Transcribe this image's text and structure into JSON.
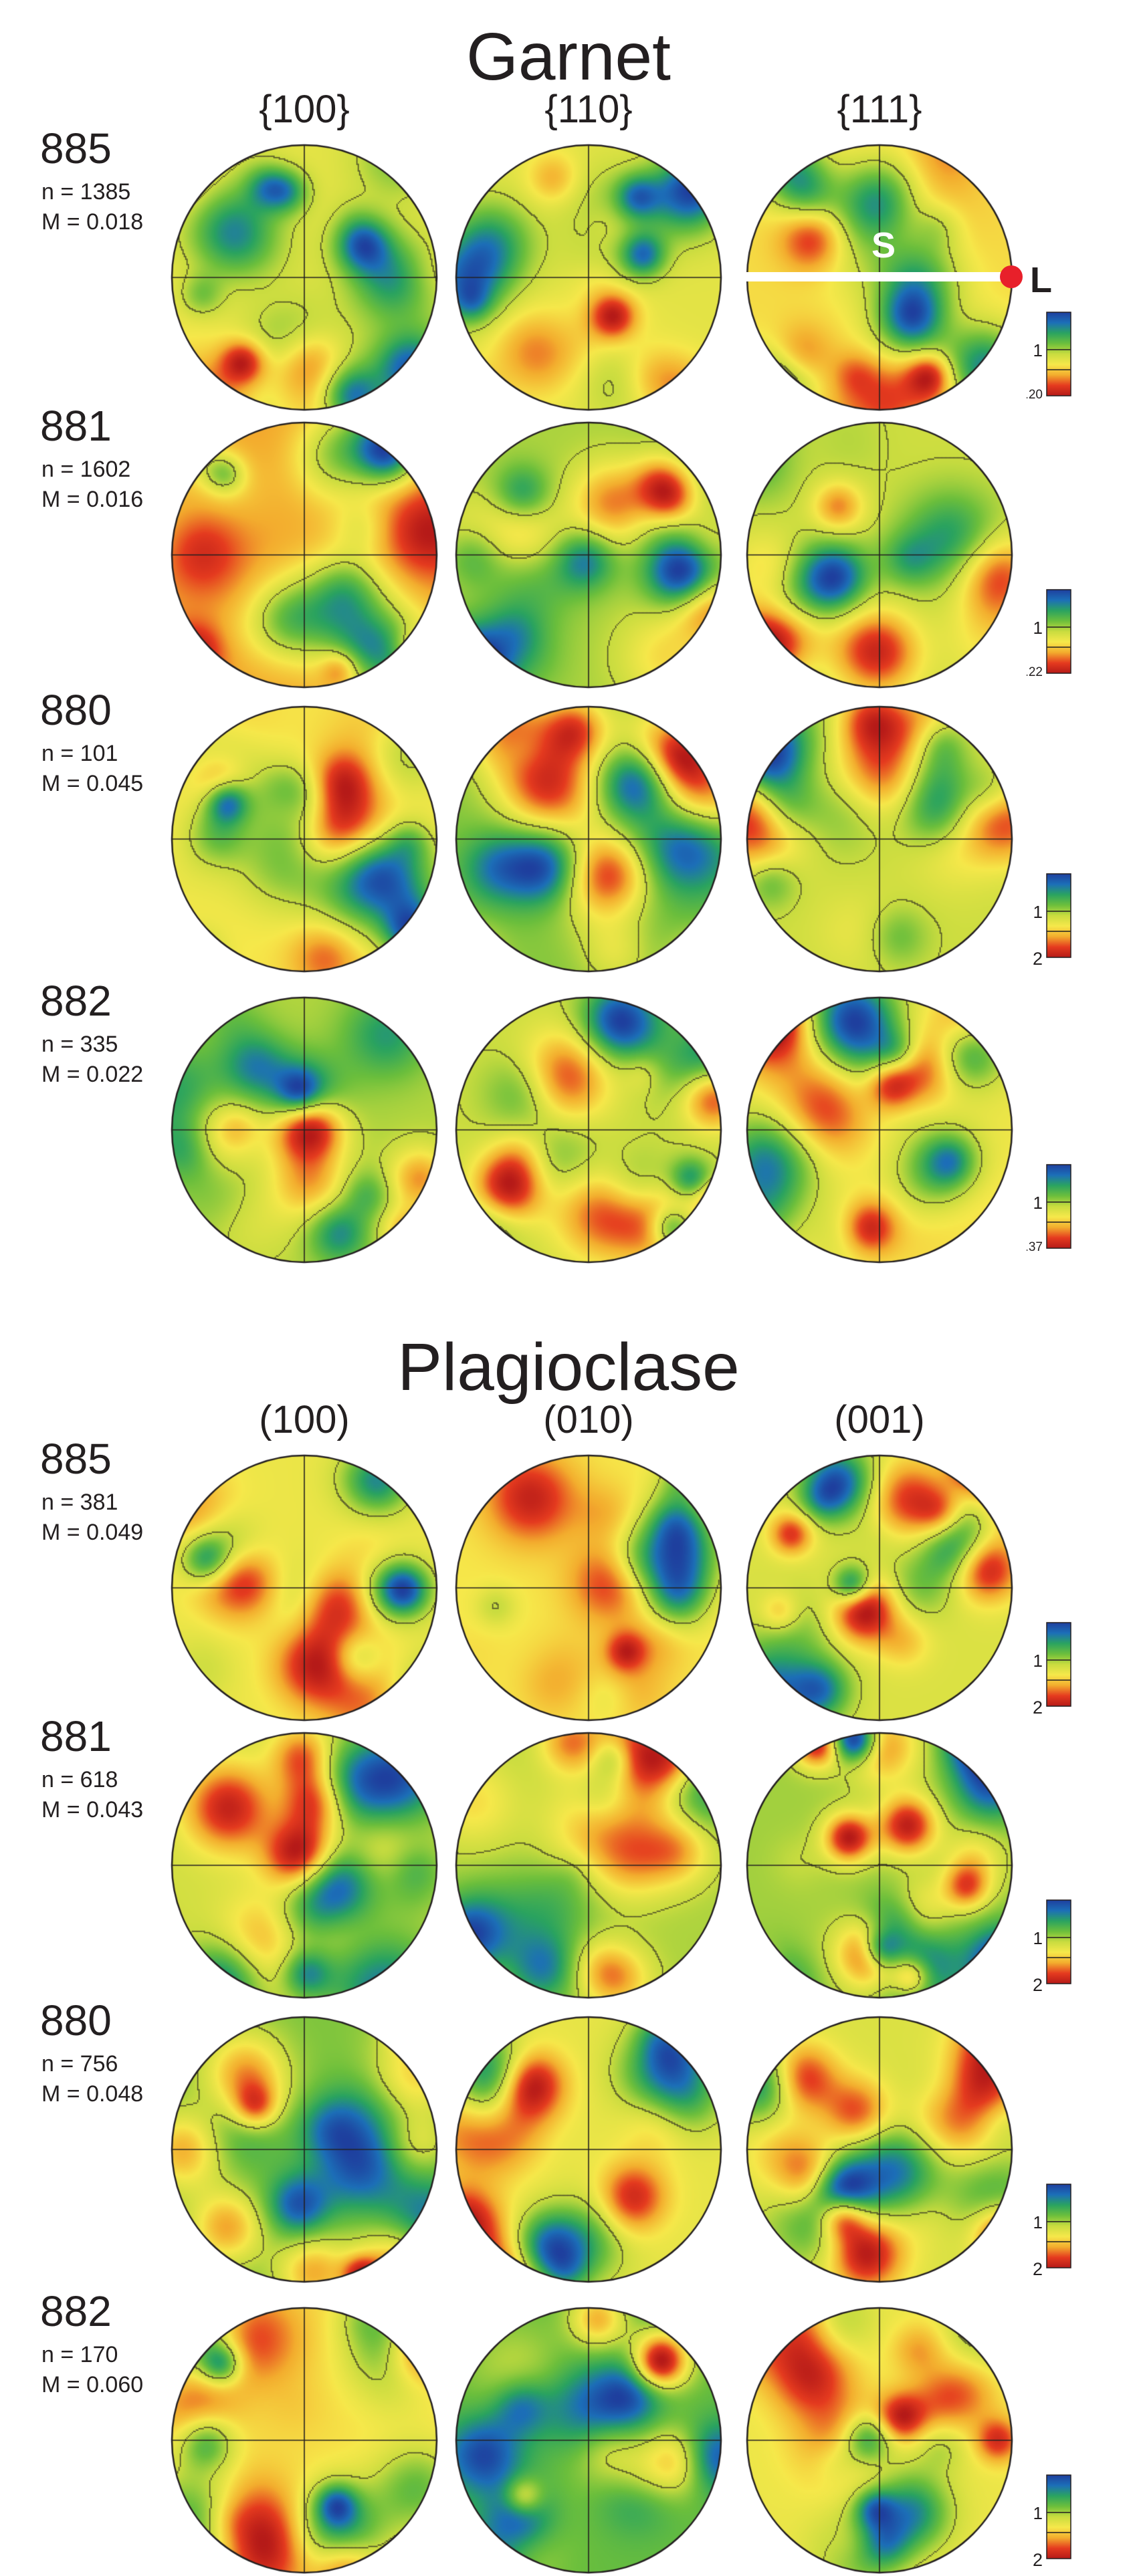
{
  "sections": [
    {
      "title": "Garnet",
      "columns": [
        "{100}",
        "{110}",
        "{111}"
      ],
      "scale_labels": [
        "1"
      ],
      "rows": [
        {
          "sample": "885",
          "n": "n = 1385",
          "m": "M = 0.018",
          "scale_max": "1.20"
        },
        {
          "sample": "881",
          "n": "n = 1602",
          "m": "M = 0.016",
          "scale_max": "1.22"
        },
        {
          "sample": "880",
          "n": "n = 101",
          "m": "M = 0.045",
          "scale_max": "2"
        },
        {
          "sample": "882",
          "n": "n = 335",
          "m": "M = 0.022",
          "scale_max": "1.37"
        }
      ]
    },
    {
      "title": "Plagioclase",
      "columns": [
        "(100)",
        "(010)",
        "(001)"
      ],
      "scale_labels": [
        "1"
      ],
      "rows": [
        {
          "sample": "885",
          "n": "n = 381",
          "m": "M = 0.049",
          "scale_max": "2"
        },
        {
          "sample": "881",
          "n": "n = 618",
          "m": "M = 0.043",
          "scale_max": "2"
        },
        {
          "sample": "880",
          "n": "n = 756",
          "m": "M = 0.048",
          "scale_max": "2"
        },
        {
          "sample": "882",
          "n": "n = 170",
          "m": "M = 0.060",
          "scale_max": "2"
        }
      ]
    }
  ],
  "annotations": {
    "foliation": "S",
    "lineation": "L"
  },
  "colors": {
    "ramp": [
      "#1e3f9e",
      "#1c6fb8",
      "#2aa360",
      "#6cbf3c",
      "#c9dc3f",
      "#f6e84a",
      "#f3ad2e",
      "#e53b1f",
      "#b51a18"
    ],
    "marker": "#e8202a",
    "line": "#231f20"
  }
}
